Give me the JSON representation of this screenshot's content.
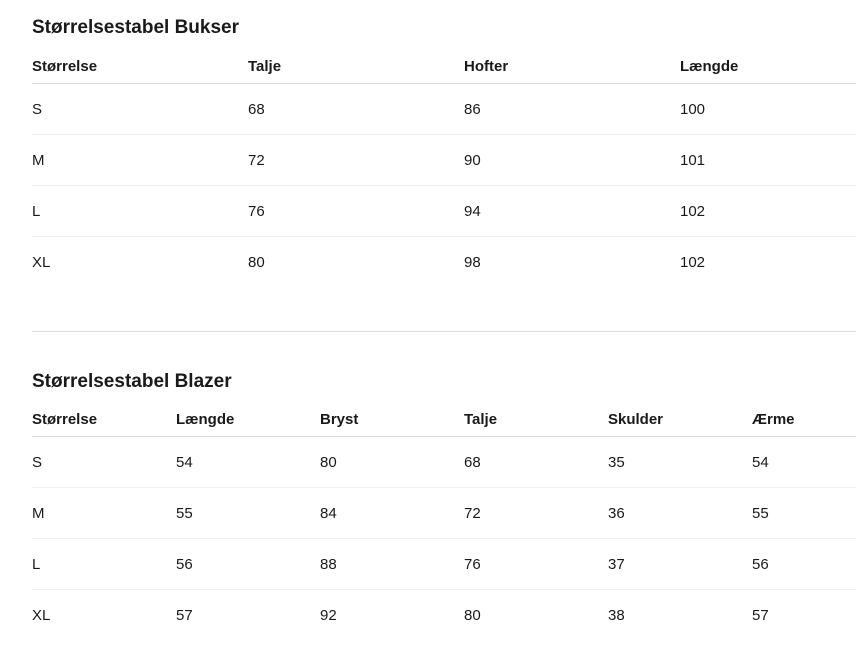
{
  "tables": [
    {
      "title": "Størrelsestabel Bukser",
      "headers": [
        "Størrelse",
        "Talje",
        "Hofter",
        "Længde"
      ],
      "rows": [
        [
          "S",
          "68",
          "86",
          "100"
        ],
        [
          "M",
          "72",
          "90",
          "101"
        ],
        [
          "L",
          "76",
          "94",
          "102"
        ],
        [
          "XL",
          "80",
          "98",
          "102"
        ]
      ]
    },
    {
      "title": "Størrelsestabel Blazer",
      "headers": [
        "Størrelse",
        "Længde",
        "Bryst",
        "Talje",
        "Skulder",
        "Ærme"
      ],
      "rows": [
        [
          "S",
          "54",
          "80",
          "68",
          "35",
          "54"
        ],
        [
          "M",
          "55",
          "84",
          "72",
          "36",
          "55"
        ],
        [
          "L",
          "56",
          "88",
          "76",
          "37",
          "56"
        ],
        [
          "XL",
          "57",
          "92",
          "80",
          "38",
          "57"
        ]
      ]
    }
  ]
}
